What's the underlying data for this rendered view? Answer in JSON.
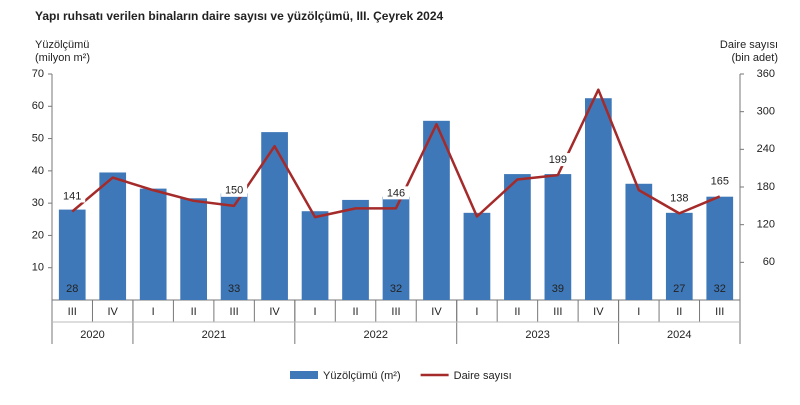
{
  "chart_data": {
    "type": "bar-line",
    "title": "Yapı ruhsatı verilen binaların daire sayısı ve yüzölçümü, III. Çeyrek 2024",
    "y_label": [
      "Yüzölçümü",
      "(milyon m²)"
    ],
    "y2_label": [
      "Daire sayısı",
      "(bin adet)"
    ],
    "categories": [
      "III",
      "IV",
      "I",
      "II",
      "III",
      "IV",
      "I",
      "II",
      "III",
      "IV",
      "I",
      "II",
      "III",
      "IV",
      "I",
      "II",
      "III"
    ],
    "groups": [
      {
        "label": "2020",
        "size": 2
      },
      {
        "label": "2021",
        "size": 4
      },
      {
        "label": "2022",
        "size": 4
      },
      {
        "label": "2023",
        "size": 4
      },
      {
        "label": "2024",
        "size": 3
      }
    ],
    "series": [
      {
        "name": "Yüzölçümü (m²)",
        "color": "#3f78b8",
        "kind": "bar",
        "values": [
          28,
          39.5,
          34.5,
          31.5,
          33,
          52,
          27.5,
          31,
          32,
          55.5,
          27,
          39,
          39,
          62.5,
          36,
          27,
          32
        ],
        "value_labels": [
          "28",
          null,
          null,
          null,
          "33",
          null,
          null,
          null,
          "32",
          null,
          null,
          null,
          "39",
          null,
          null,
          "27",
          "32"
        ]
      },
      {
        "name": "Daire sayısı",
        "color": "#a52a2a",
        "kind": "line",
        "axis": "y2",
        "values": [
          141,
          195,
          175,
          158,
          150,
          245,
          132,
          146,
          146,
          280,
          133,
          192,
          199,
          335,
          175,
          138,
          165
        ],
        "value_labels": [
          "141",
          null,
          null,
          null,
          "150",
          null,
          null,
          null,
          "146",
          null,
          null,
          null,
          "199",
          null,
          null,
          "138",
          "165"
        ]
      }
    ],
    "ylim": [
      0,
      70
    ],
    "yticks": [
      10,
      20,
      30,
      40,
      50,
      60,
      70
    ],
    "y2lim": [
      0,
      360
    ],
    "y2ticks": [
      60,
      120,
      180,
      240,
      300,
      360
    ],
    "grid": false,
    "legend": "bottom"
  }
}
